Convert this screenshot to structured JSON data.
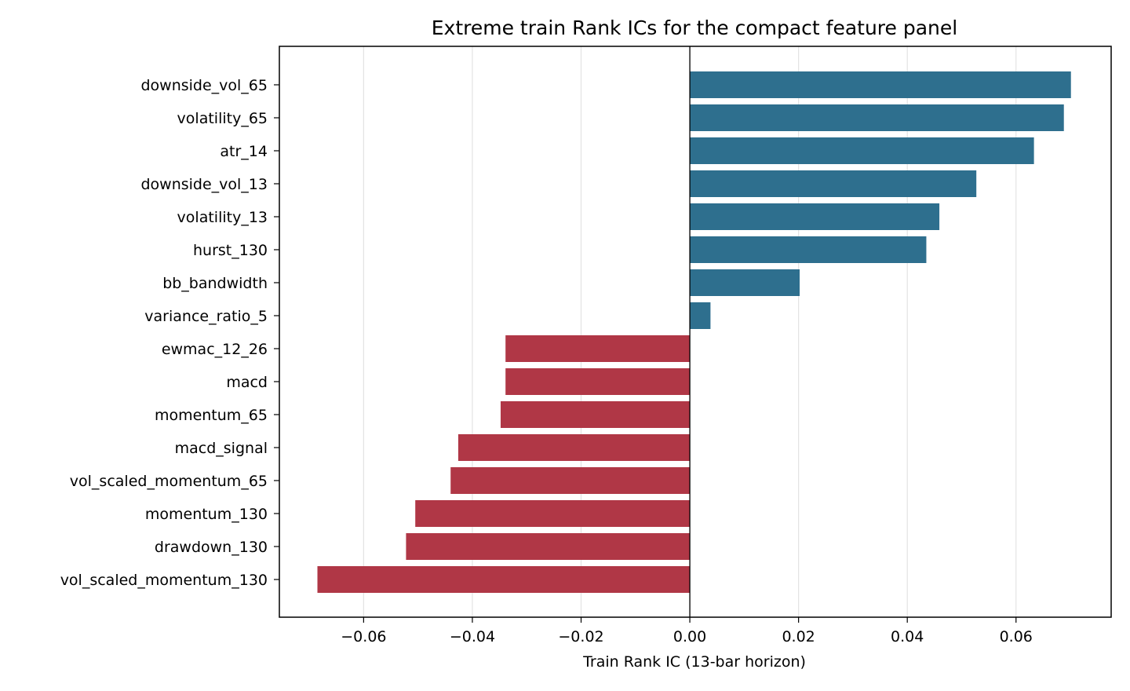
{
  "chart_data": {
    "type": "bar",
    "orientation": "horizontal",
    "title": "Extreme train Rank ICs for the compact feature panel",
    "xlabel": "Train Rank IC (13-bar horizon)",
    "ylabel": "",
    "xlim": [
      -0.0755,
      0.0775
    ],
    "x_ticks": [
      -0.06,
      -0.04,
      -0.02,
      0.0,
      0.02,
      0.04,
      0.06
    ],
    "x_tick_labels": [
      "−0.06",
      "−0.04",
      "−0.02",
      "0.00",
      "0.02",
      "0.04",
      "0.06"
    ],
    "grid": "vertical",
    "legend": "none",
    "zero_line": true,
    "categories": [
      "downside_vol_65",
      "volatility_65",
      "atr_14",
      "downside_vol_13",
      "volatility_13",
      "hurst_130",
      "bb_bandwidth",
      "variance_ratio_5",
      "ewmac_12_26",
      "macd",
      "momentum_65",
      "macd_signal",
      "vol_scaled_momentum_65",
      "momentum_130",
      "drawdown_130",
      "vol_scaled_momentum_130"
    ],
    "values": [
      0.0701,
      0.0688,
      0.0633,
      0.0527,
      0.0459,
      0.0435,
      0.0202,
      0.0038,
      -0.0339,
      -0.0339,
      -0.0348,
      -0.0426,
      -0.044,
      -0.0505,
      -0.0522,
      -0.0685
    ],
    "colors": {
      "positive": "#2e6f8e",
      "negative": "#b03746"
    }
  }
}
